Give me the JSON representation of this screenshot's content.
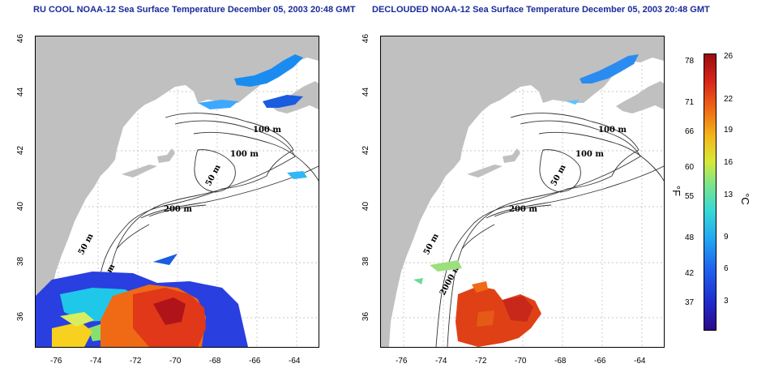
{
  "left_panel": {
    "title": "RU COOL NOAA-12 Sea Surface Temperature December 05, 2003 20:48 GMT"
  },
  "right_panel": {
    "title": "DECLOUDED NOAA-12 Sea Surface Temperature December 05, 2003 20:48 GMT"
  },
  "axes": {
    "x_ticks": [
      "-76",
      "-74",
      "-72",
      "-70",
      "-68",
      "-66",
      "-64"
    ],
    "y_ticks": [
      "36",
      "38",
      "40",
      "42",
      "44",
      "46"
    ]
  },
  "contours": {
    "labels": [
      "100 m",
      "100 m",
      "50 m",
      "200 m",
      "50 m",
      "2000 m"
    ]
  },
  "colorbar": {
    "fahrenheit_ticks": [
      "78",
      "71",
      "66",
      "60",
      "55",
      "48",
      "42",
      "37"
    ],
    "celsius_ticks": [
      "26",
      "22",
      "19",
      "16",
      "13",
      "9",
      "6",
      "3"
    ],
    "fahrenheit_unit": "°F",
    "celsius_unit": "°C"
  },
  "colors": {
    "land": "#c0c0c0",
    "ocean": "#ffffff",
    "title": "#1a2a9a"
  }
}
